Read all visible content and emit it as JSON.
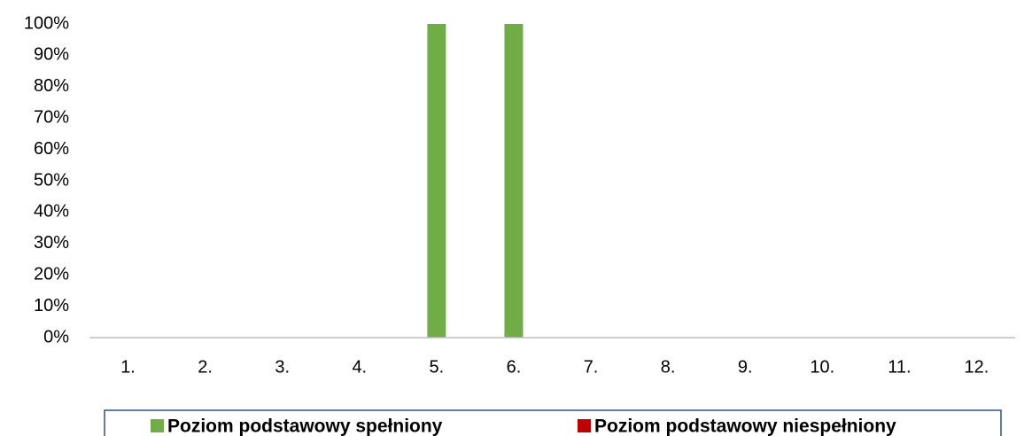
{
  "chart_data": {
    "type": "stacked_bar",
    "categories": [
      "1.",
      "2.",
      "3.",
      "4.",
      "5.",
      "6.",
      "7.",
      "8.",
      "9.",
      "10.",
      "11.",
      "12."
    ],
    "series": [
      {
        "name": "Poziom podstawowy spełniony",
        "color": "#70ad47",
        "values": [
          0,
          0,
          0,
          0,
          100,
          100,
          0,
          0,
          0,
          0,
          0,
          0
        ]
      },
      {
        "name": "Poziom podstawowy niespełniony",
        "color": "#c00000",
        "values": [
          0,
          0,
          0,
          0,
          0,
          0,
          0,
          0,
          0,
          0,
          0,
          0
        ]
      }
    ],
    "ylim": [
      0,
      100
    ],
    "yticks": [
      {
        "value": 0,
        "label": "0%"
      },
      {
        "value": 10,
        "label": "10%"
      },
      {
        "value": 20,
        "label": "20%"
      },
      {
        "value": 30,
        "label": "30%"
      },
      {
        "value": 40,
        "label": "40%"
      },
      {
        "value": 50,
        "label": "50%"
      },
      {
        "value": 60,
        "label": "60%"
      },
      {
        "value": 70,
        "label": "70%"
      },
      {
        "value": 80,
        "label": "80%"
      },
      {
        "value": 90,
        "label": "90%"
      },
      {
        "value": 100,
        "label": "100%"
      }
    ],
    "grid": false,
    "legend": "bottom"
  }
}
